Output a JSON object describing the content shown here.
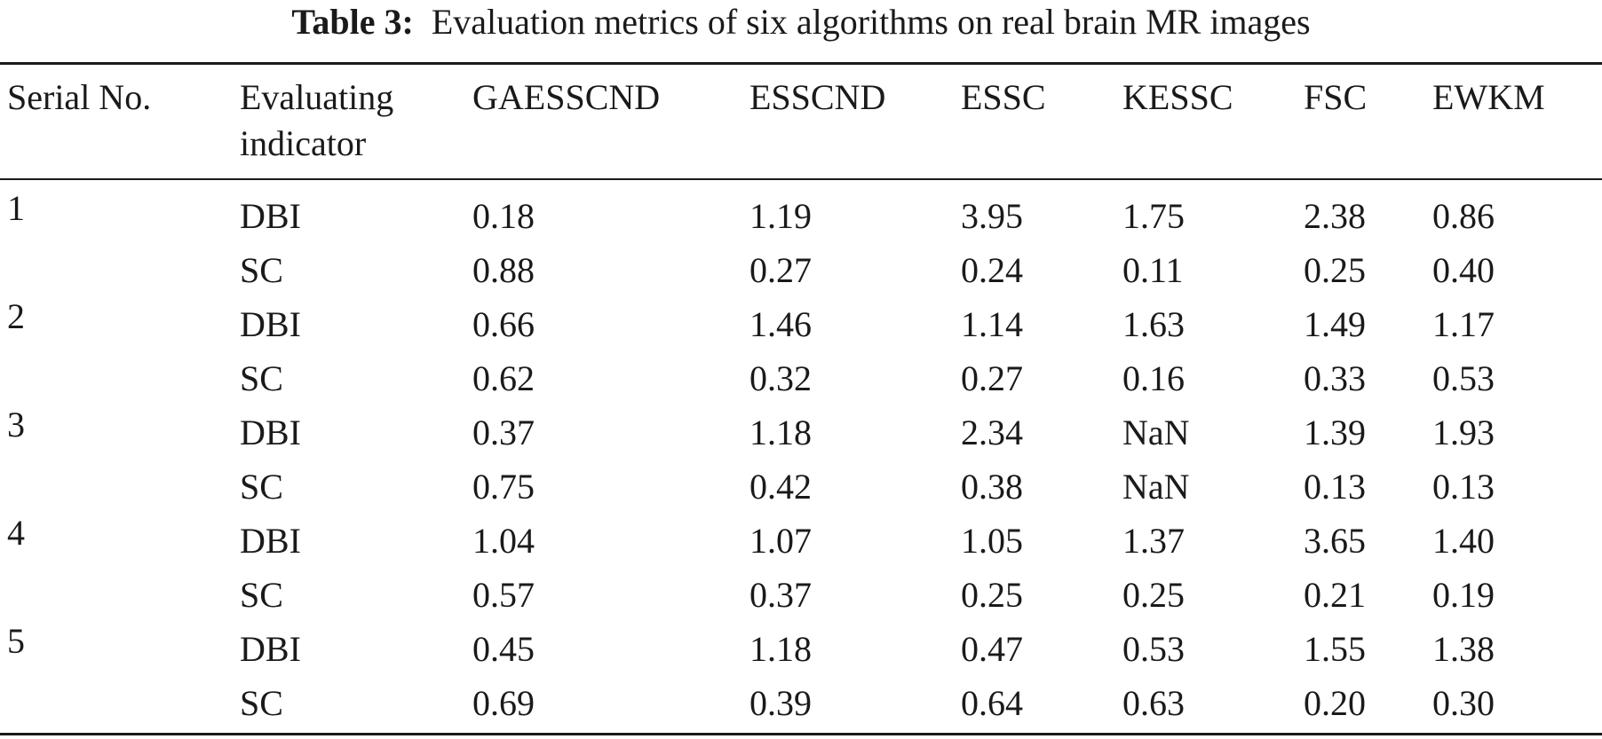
{
  "caption": {
    "label": "Table 3:",
    "text": "Evaluation metrics of six algorithms on real brain MR images"
  },
  "columns": {
    "serial": "Serial No.",
    "indicator_line1": "Evaluating",
    "indicator_line2": "indicator",
    "algorithms": [
      "GAESSCND",
      "ESSCND",
      "ESSC",
      "KESSC",
      "FSC",
      "EWKM"
    ]
  },
  "rows": [
    {
      "serial": "1",
      "indicator": "DBI",
      "values": [
        "0.18",
        "1.19",
        "3.95",
        "1.75",
        "2.38",
        "0.86"
      ]
    },
    {
      "serial": "",
      "indicator": "SC",
      "values": [
        "0.88",
        "0.27",
        "0.24",
        "0.11",
        "0.25",
        "0.40"
      ]
    },
    {
      "serial": "2",
      "indicator": "DBI",
      "values": [
        "0.66",
        "1.46",
        "1.14",
        "1.63",
        "1.49",
        "1.17"
      ]
    },
    {
      "serial": "",
      "indicator": "SC",
      "values": [
        "0.62",
        "0.32",
        "0.27",
        "0.16",
        "0.33",
        "0.53"
      ]
    },
    {
      "serial": "3",
      "indicator": "DBI",
      "values": [
        "0.37",
        "1.18",
        "2.34",
        "NaN",
        "1.39",
        "1.93"
      ]
    },
    {
      "serial": "",
      "indicator": "SC",
      "values": [
        "0.75",
        "0.42",
        "0.38",
        "NaN",
        "0.13",
        "0.13"
      ]
    },
    {
      "serial": "4",
      "indicator": "DBI",
      "values": [
        "1.04",
        "1.07",
        "1.05",
        "1.37",
        "3.65",
        "1.40"
      ]
    },
    {
      "serial": "",
      "indicator": "SC",
      "values": [
        "0.57",
        "0.37",
        "0.25",
        "0.25",
        "0.21",
        "0.19"
      ]
    },
    {
      "serial": "5",
      "indicator": "DBI",
      "values": [
        "0.45",
        "1.18",
        "0.47",
        "0.53",
        "1.55",
        "1.38"
      ]
    },
    {
      "serial": "",
      "indicator": "SC",
      "values": [
        "0.69",
        "0.39",
        "0.64",
        "0.63",
        "0.20",
        "0.30"
      ]
    }
  ]
}
